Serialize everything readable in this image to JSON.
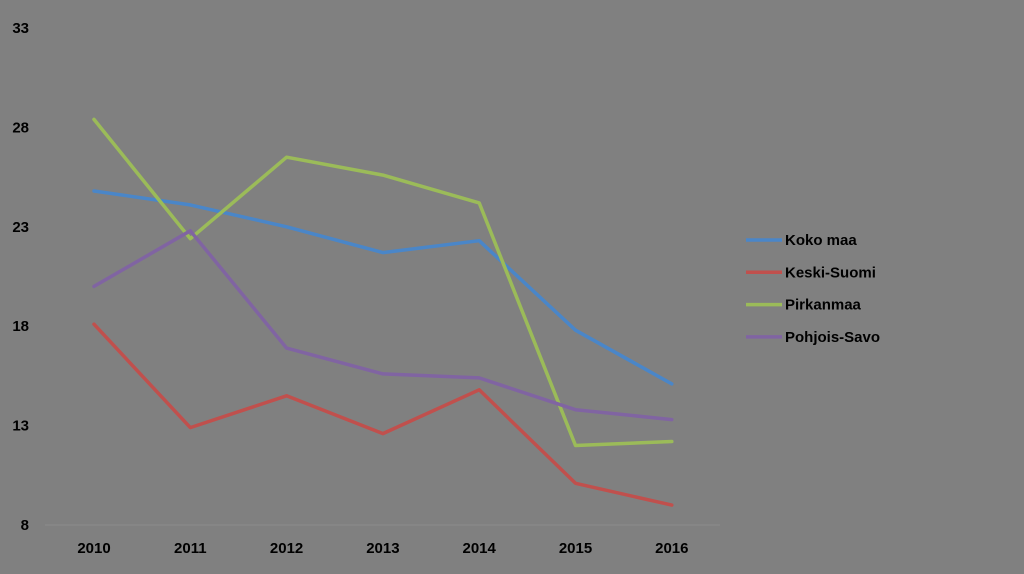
{
  "chart_data": {
    "type": "line",
    "title": "",
    "xlabel": "",
    "ylabel": "",
    "categories": [
      "2010",
      "2011",
      "2012",
      "2013",
      "2014",
      "2015",
      "2016"
    ],
    "y_ticks": [
      "33",
      "28",
      "23",
      "18",
      "13",
      "8"
    ],
    "ylim": [
      8,
      33
    ],
    "grid": false,
    "legend_position": "right",
    "background_color": "#808080",
    "series": [
      {
        "name": "Koko maa",
        "color": "#4a86c8",
        "values": [
          24.8,
          24.1,
          23.0,
          21.7,
          22.3,
          17.8,
          15.1
        ]
      },
      {
        "name": "Keski-Suomi",
        "color": "#c0504d",
        "values": [
          18.1,
          12.9,
          14.5,
          12.6,
          14.8,
          10.1,
          9.0
        ]
      },
      {
        "name": "Pirkanmaa",
        "color": "#9bbb59",
        "values": [
          28.4,
          22.4,
          26.5,
          25.6,
          24.2,
          12.0,
          12.2
        ]
      },
      {
        "name": "Pohjois-Savo",
        "color": "#8064a2",
        "values": [
          20.0,
          22.8,
          16.9,
          15.6,
          15.4,
          13.8,
          13.3
        ]
      }
    ]
  }
}
